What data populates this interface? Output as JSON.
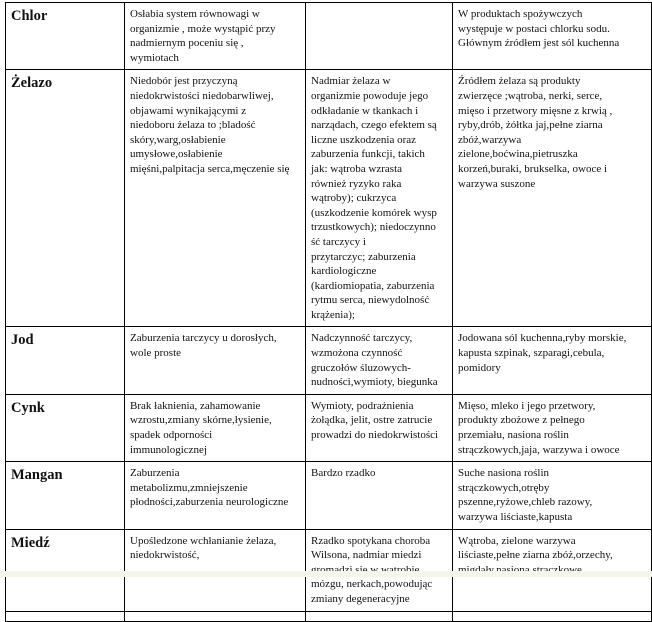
{
  "rows": [
    {
      "name": "Chlor",
      "deficiency": "Osłabia system równowagi w\norganizmie , może wystąpić przy\nnadmiernym poceniu się ,\nwymiotach",
      "excess": "",
      "sources": "W produktach spożywczych\nwystępuje w postaci chlorku sodu.\nGłównym źródłem jest sól kuchenna"
    },
    {
      "name": "Żelazo",
      "deficiency": "Niedobór jest przyczyną\nniedokrwistości niedobarwliwej,\nobjawami wynikającymi z\nniedoboru żelaza to ;bladość\nskóry,warg,osłabienie\numysłowe,osłabienie\nmięśni,palpitacja serca,męczenie się",
      "excess": "Nadmiar żelaza w\norganizmie powoduje jego\nodkładanie w tkankach i\nnarządach, czego efektem są\nliczne uszkodzenia oraz\nzaburzenia funkcji, takich\njak: wątroba wzrasta\nrównież ryzyko raka\nwątroby); cukrzyca\n(uszkodzenie komórek wysp\ntrzustkowych); niedoczynno\nść tarczycy i\nprzytarczyc; zaburzenia\nkardiologiczne\n(kardiomiopatia, zaburzenia\nrytmu serca, niewydolność\nkrążenia);",
      "sources": "Źródłem żelaza są produkty\nzwierzęce ;wątroba, nerki, serce,\nmięso i przetwory mięsne z krwią ,\nryby,drób, żółtka jaj,pełne ziarna\nzbóż,warzywa\nzielone,boćwina,pietruszka\nkorzeń,buraki, brukselka, owoce i\nwarzywa suszone"
    },
    {
      "name": "Jod",
      "deficiency": "Zaburzenia tarczycy u dorosłych,\nwole proste",
      "excess": "Nadczynność tarczycy,\nwzmożona czynność\ngruczołów śluzowych-\nnudności,wymioty, biegunka",
      "sources": "Jodowana sól kuchenna,ryby morskie,\nkapusta szpinak, szparagi,cebula,\npomidory"
    },
    {
      "name": "Cynk",
      "deficiency": "Brak łaknienia, zahamowanie\nwzrostu,zmiany skórne,łysienie,\nspadek odporności\nimmunologicznej",
      "excess": "Wymioty, podrażnienia\nżołądka, jelit, ostre zatrucie\nprowadzi do niedokrwistości",
      "sources": "Mięso, mleko i jego przetwory,\nprodukty zbożowe z pełnego\nprzemiału, nasiona roślin\nstrączkowych,jaja, warzywa i owoce"
    },
    {
      "name": "Mangan",
      "deficiency": "Zaburzenia\nmetabolizmu,zmniejszenie\npłodności,zaburzenia neurologiczne",
      "excess": "Bardzo rzadko",
      "sources": "Suche nasiona roślin\nstrączkowych,otręby\npszenne,ryżowe,chleb razowy,\nwarzywa liściaste,kapusta"
    },
    {
      "name": "Miedź",
      "deficiency": "Upośledzone wchłanianie żelaza,\nniedokrwistość,",
      "excess": "Rzadko spotykana choroba\nWilsona, nadmiar miedzi\ngromadzi się w wątrobie,\nmózgu, nerkach,powodując\nzmiany degeneracyjne",
      "sources": "Wątroba, zielone warzywa\nliściaste,pełne ziarna zbóż,orzechy,\nmigdały,nasiona strączkowe"
    }
  ]
}
